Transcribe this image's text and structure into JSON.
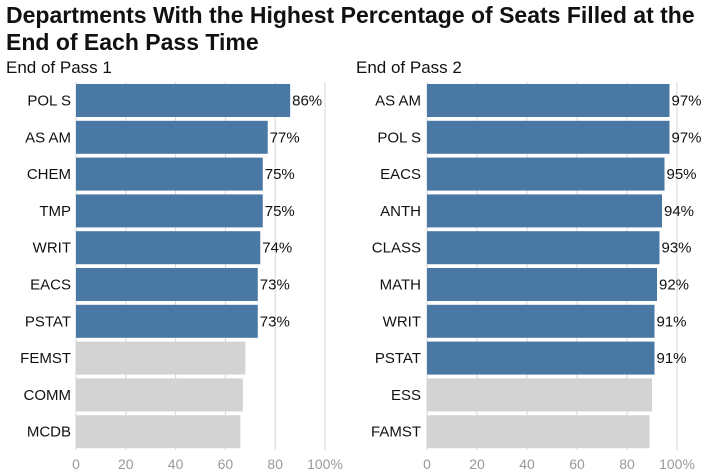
{
  "chart_data": [
    {
      "type": "bar",
      "orientation": "horizontal",
      "title": "Departments With the Highest Percentage of Seats Filled at the End of Each Pass Time",
      "subtitle": "End of Pass 1",
      "categories": [
        "POL S",
        "AS AM",
        "CHEM",
        "TMP",
        "WRIT",
        "EACS",
        "PSTAT",
        "FEMST",
        "COMM",
        "MCDB"
      ],
      "values": [
        86,
        77,
        75,
        75,
        74,
        73,
        73,
        68,
        67,
        66
      ],
      "value_labels": [
        "86%",
        "77%",
        "75%",
        "75%",
        "74%",
        "73%",
        "73%",
        "",
        "",
        ""
      ],
      "highlighted": [
        true,
        true,
        true,
        true,
        true,
        true,
        true,
        false,
        false,
        false
      ],
      "xlim": [
        0,
        100
      ],
      "xticks": [
        "0",
        "20",
        "40",
        "60",
        "80",
        "100%"
      ],
      "grid": true
    },
    {
      "type": "bar",
      "orientation": "horizontal",
      "subtitle": "End of Pass 2",
      "categories": [
        "AS AM",
        "POL S",
        "EACS",
        "ANTH",
        "CLASS",
        "MATH",
        "WRIT",
        "PSTAT",
        "ESS",
        "FAMST"
      ],
      "values": [
        97,
        97,
        95,
        94,
        93,
        92,
        91,
        91,
        90,
        89
      ],
      "value_labels": [
        "97%",
        "97%",
        "95%",
        "94%",
        "93%",
        "92%",
        "91%",
        "91%",
        "",
        ""
      ],
      "highlighted": [
        true,
        true,
        true,
        true,
        true,
        true,
        true,
        true,
        false,
        false
      ],
      "xlim": [
        0,
        100
      ],
      "xticks": [
        "0",
        "20",
        "40",
        "60",
        "80",
        "100%"
      ],
      "grid": true
    }
  ],
  "colors": {
    "highlight": "#4a78a5",
    "muted": "#d3d3d3",
    "grid": "#d6d6d6",
    "tick_text": "#999999"
  }
}
